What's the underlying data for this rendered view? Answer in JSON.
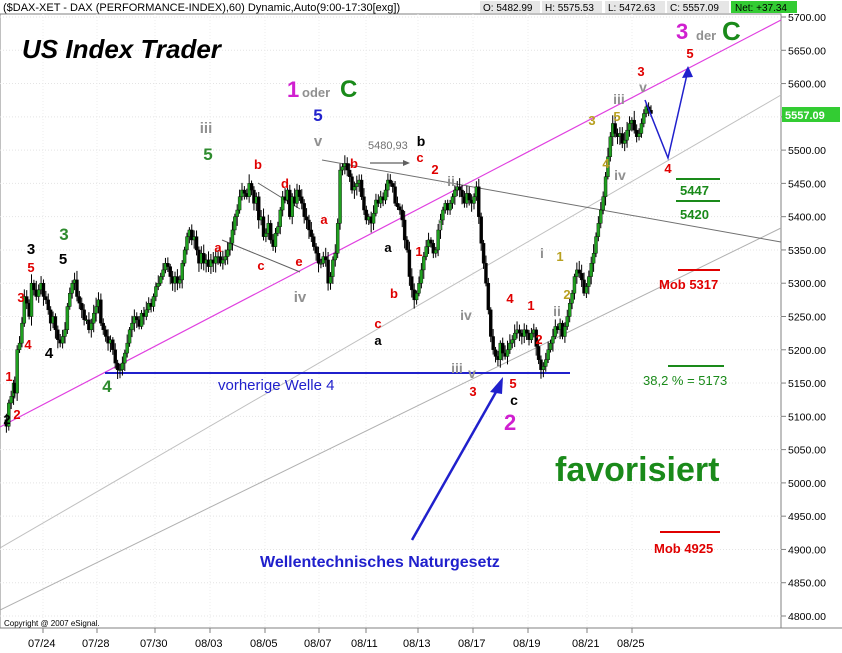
{
  "header": {
    "symbol_line": "($DAX-XET - DAX (PERFORMANCE-INDEX),60) Dynamic,Auto(9:00-17:30[exg])",
    "open": "O: 5482.99",
    "high": "H: 5575.53",
    "low": "L: 5472.63",
    "close": "C: 5557.09",
    "net": "Net: +37.34",
    "colors": {
      "net_bg": "#33cc33",
      "box_bg": "#e6e6e6"
    }
  },
  "title": "US Index Trader",
  "copyright": "Copyright @ 2007 eSignal.",
  "annotations": {
    "vorherige": "vorherige Welle 4",
    "naturgesetz": "Wellentechnisches Naturgesetz",
    "favorisiert": "favorisiert",
    "level_5480": "5480,93",
    "mob_5317": "Mob 5317",
    "mob_4925": "Mob 4925",
    "fib": "38,2 % = 5173",
    "lvl_5447": "5447",
    "lvl_5420": "5420",
    "one_oder": "1",
    "oder_word": "oder",
    "c_big": "C",
    "three": "3",
    "der_word": "der",
    "c_big2": "C",
    "two_big": "2",
    "last_price": "5557.09"
  },
  "wave_labels": [
    {
      "t": "2",
      "x": 7,
      "y": 424,
      "c": "#000000",
      "s": 13
    },
    {
      "t": "1",
      "x": 9,
      "y": 381,
      "c": "#e00000",
      "s": 13
    },
    {
      "t": "2",
      "x": 17,
      "y": 419,
      "c": "#e00000",
      "s": 13
    },
    {
      "t": "3",
      "x": 21,
      "y": 302,
      "c": "#e00000",
      "s": 13
    },
    {
      "t": "4",
      "x": 28,
      "y": 349,
      "c": "#e00000",
      "s": 13
    },
    {
      "t": "5",
      "x": 31,
      "y": 272,
      "c": "#e00000",
      "s": 13
    },
    {
      "t": "3",
      "x": 31,
      "y": 254,
      "c": "#000000",
      "s": 15
    },
    {
      "t": "4",
      "x": 49,
      "y": 358,
      "c": "#000000",
      "s": 15
    },
    {
      "t": "3",
      "x": 64,
      "y": 240,
      "c": "#2e8b2e",
      "s": 17
    },
    {
      "t": "4",
      "x": 107,
      "y": 392,
      "c": "#2e8b2e",
      "s": 17
    },
    {
      "t": "5",
      "x": 63,
      "y": 264,
      "c": "#000000",
      "s": 15
    },
    {
      "t": "iii",
      "x": 206,
      "y": 133,
      "c": "#909090",
      "s": 15
    },
    {
      "t": "5",
      "x": 208,
      "y": 160,
      "c": "#2e8b2e",
      "s": 17
    },
    {
      "t": "a",
      "x": 218,
      "y": 252,
      "c": "#e00000",
      "s": 13
    },
    {
      "t": "b",
      "x": 258,
      "y": 169,
      "c": "#e00000",
      "s": 13
    },
    {
      "t": "c",
      "x": 261,
      "y": 270,
      "c": "#e00000",
      "s": 13
    },
    {
      "t": "d",
      "x": 285,
      "y": 188,
      "c": "#e00000",
      "s": 13
    },
    {
      "t": "e",
      "x": 299,
      "y": 266,
      "c": "#e00000",
      "s": 13
    },
    {
      "t": "iv",
      "x": 300,
      "y": 302,
      "c": "#909090",
      "s": 15
    },
    {
      "t": "5",
      "x": 318,
      "y": 121,
      "c": "#2222cc",
      "s": 17
    },
    {
      "t": "v",
      "x": 318,
      "y": 146,
      "c": "#909090",
      "s": 15
    },
    {
      "t": "a",
      "x": 324,
      "y": 224,
      "c": "#e00000",
      "s": 13
    },
    {
      "t": "b",
      "x": 354,
      "y": 168,
      "c": "#e00000",
      "s": 13
    },
    {
      "t": "b",
      "x": 421,
      "y": 146,
      "c": "#000000",
      "s": 14
    },
    {
      "t": "c",
      "x": 420,
      "y": 162,
      "c": "#e00000",
      "s": 13
    },
    {
      "t": "2",
      "x": 435,
      "y": 174,
      "c": "#e00000",
      "s": 13
    },
    {
      "t": "ii",
      "x": 451,
      "y": 186,
      "c": "#909090",
      "s": 14
    },
    {
      "t": "i",
      "x": 440,
      "y": 230,
      "c": "#909090",
      "s": 14
    },
    {
      "t": "a",
      "x": 388,
      "y": 252,
      "c": "#000000",
      "s": 13
    },
    {
      "t": "1",
      "x": 419,
      "y": 256,
      "c": "#e00000",
      "s": 13
    },
    {
      "t": "b",
      "x": 394,
      "y": 298,
      "c": "#e00000",
      "s": 13
    },
    {
      "t": "c",
      "x": 378,
      "y": 328,
      "c": "#e00000",
      "s": 13
    },
    {
      "t": "a",
      "x": 378,
      "y": 345,
      "c": "#000000",
      "s": 13
    },
    {
      "t": "iv",
      "x": 466,
      "y": 320,
      "c": "#909090",
      "s": 14
    },
    {
      "t": "iii",
      "x": 457,
      "y": 373,
      "c": "#909090",
      "s": 14
    },
    {
      "t": "v",
      "x": 472,
      "y": 378,
      "c": "#909090",
      "s": 14
    },
    {
      "t": "3",
      "x": 473,
      "y": 396,
      "c": "#e00000",
      "s": 13
    },
    {
      "t": "5",
      "x": 513,
      "y": 388,
      "c": "#e00000",
      "s": 13
    },
    {
      "t": "c",
      "x": 514,
      "y": 405,
      "c": "#000000",
      "s": 14
    },
    {
      "t": "4",
      "x": 510,
      "y": 303,
      "c": "#e00000",
      "s": 13
    },
    {
      "t": "1",
      "x": 531,
      "y": 310,
      "c": "#e00000",
      "s": 13
    },
    {
      "t": "2",
      "x": 539,
      "y": 344,
      "c": "#e00000",
      "s": 13
    },
    {
      "t": "i",
      "x": 542,
      "y": 258,
      "c": "#909090",
      "s": 14
    },
    {
      "t": "1",
      "x": 560,
      "y": 261,
      "c": "#b8a020",
      "s": 13
    },
    {
      "t": "2",
      "x": 567,
      "y": 299,
      "c": "#b8a020",
      "s": 13
    },
    {
      "t": "ii",
      "x": 557,
      "y": 316,
      "c": "#909090",
      "s": 14
    },
    {
      "t": "3",
      "x": 592,
      "y": 125,
      "c": "#b8a020",
      "s": 13
    },
    {
      "t": "4",
      "x": 606,
      "y": 168,
      "c": "#b8a020",
      "s": 13
    },
    {
      "t": "5",
      "x": 617,
      "y": 121,
      "c": "#b8a020",
      "s": 13
    },
    {
      "t": "iii",
      "x": 619,
      "y": 104,
      "c": "#909090",
      "s": 14
    },
    {
      "t": "iv",
      "x": 620,
      "y": 180,
      "c": "#909090",
      "s": 14
    },
    {
      "t": "3",
      "x": 641,
      "y": 76,
      "c": "#e00000",
      "s": 13
    },
    {
      "t": "v",
      "x": 643,
      "y": 92,
      "c": "#909090",
      "s": 14
    },
    {
      "t": "4",
      "x": 668,
      "y": 173,
      "c": "#e00000",
      "s": 13
    },
    {
      "t": "5",
      "x": 690,
      "y": 58,
      "c": "#e00000",
      "s": 13
    }
  ],
  "x_axis": {
    "labels": [
      "07/24",
      "07/28",
      "07/30",
      "08/03",
      "08/05",
      "08/07",
      "08/11",
      "08/13",
      "08/17",
      "08/19",
      "08/21",
      "08/25"
    ]
  },
  "chart_data": {
    "type": "candlestick",
    "title": "($DAX-XET - DAX (PERFORMANCE-INDEX),60) Dynamic,Auto(9:00-17:30[exg])",
    "ylim": [
      4770,
      5730
    ],
    "y_ticks": [
      4800,
      4850,
      4900,
      4950,
      5000,
      5050,
      5100,
      5150,
      5200,
      5250,
      5300,
      5350,
      5400,
      5450,
      5500,
      5550,
      5600,
      5650,
      5700
    ],
    "y_tick_labels": [
      "4800.00",
      "4850.00",
      "4900.00",
      "4950.00",
      "5000.00",
      "5050.00",
      "5100.00",
      "5150.00",
      "5200.00",
      "5250.00",
      "5300.00",
      "5350.00",
      "5400.00",
      "5450.00",
      "5500.00",
      "5550.00",
      "5600.00",
      "5650.00",
      "5700.00"
    ],
    "x_tick_labels": [
      "07/24",
      "07/28",
      "07/30",
      "08/03",
      "08/05",
      "08/07",
      "08/11",
      "08/13",
      "08/17",
      "08/19",
      "08/21",
      "08/25"
    ],
    "last_price": 5557.09,
    "price_path": [
      [
        0,
        5095
      ],
      [
        2,
        5085
      ],
      [
        4,
        5120
      ],
      [
        6,
        5130
      ],
      [
        8,
        5150
      ],
      [
        9,
        5135
      ],
      [
        11,
        5200
      ],
      [
        13,
        5210
      ],
      [
        15,
        5240
      ],
      [
        17,
        5280
      ],
      [
        19,
        5270
      ],
      [
        21,
        5250
      ],
      [
        23,
        5300
      ],
      [
        25,
        5290
      ],
      [
        27,
        5280
      ],
      [
        29,
        5290
      ],
      [
        31,
        5300
      ],
      [
        33,
        5280
      ],
      [
        35,
        5275
      ],
      [
        37,
        5260
      ],
      [
        39,
        5240
      ],
      [
        41,
        5250
      ],
      [
        43,
        5230
      ],
      [
        45,
        5215
      ],
      [
        47,
        5210
      ],
      [
        49,
        5220
      ],
      [
        51,
        5230
      ],
      [
        53,
        5265
      ],
      [
        55,
        5285
      ],
      [
        57,
        5300
      ],
      [
        59,
        5305
      ],
      [
        61,
        5280
      ],
      [
        63,
        5270
      ],
      [
        65,
        5260
      ],
      [
        67,
        5245
      ],
      [
        69,
        5245
      ],
      [
        71,
        5230
      ],
      [
        73,
        5240
      ],
      [
        75,
        5255
      ],
      [
        77,
        5265
      ],
      [
        79,
        5275
      ],
      [
        81,
        5240
      ],
      [
        83,
        5230
      ],
      [
        85,
        5220
      ],
      [
        87,
        5210
      ],
      [
        89,
        5215
      ],
      [
        91,
        5200
      ],
      [
        93,
        5180
      ],
      [
        95,
        5170
      ],
      [
        97,
        5170
      ],
      [
        99,
        5180
      ],
      [
        101,
        5195
      ],
      [
        103,
        5210
      ],
      [
        105,
        5230
      ],
      [
        107,
        5240
      ],
      [
        109,
        5250
      ],
      [
        111,
        5245
      ],
      [
        113,
        5235
      ],
      [
        115,
        5255
      ],
      [
        117,
        5250
      ],
      [
        119,
        5260
      ],
      [
        121,
        5270
      ],
      [
        123,
        5265
      ],
      [
        125,
        5280
      ],
      [
        127,
        5295
      ],
      [
        129,
        5300
      ],
      [
        131,
        5310
      ],
      [
        133,
        5320
      ],
      [
        135,
        5330
      ],
      [
        137,
        5325
      ],
      [
        139,
        5310
      ],
      [
        141,
        5300
      ],
      [
        143,
        5310
      ],
      [
        145,
        5300
      ],
      [
        147,
        5305
      ],
      [
        149,
        5330
      ],
      [
        151,
        5350
      ],
      [
        153,
        5370
      ],
      [
        155,
        5380
      ],
      [
        157,
        5365
      ],
      [
        159,
        5370
      ],
      [
        161,
        5350
      ],
      [
        163,
        5330
      ],
      [
        165,
        5345
      ],
      [
        167,
        5330
      ],
      [
        169,
        5335
      ],
      [
        171,
        5325
      ],
      [
        173,
        5335
      ],
      [
        175,
        5330
      ],
      [
        177,
        5340
      ],
      [
        179,
        5340
      ],
      [
        181,
        5330
      ],
      [
        183,
        5335
      ],
      [
        185,
        5340
      ],
      [
        187,
        5350
      ],
      [
        189,
        5360
      ],
      [
        191,
        5380
      ],
      [
        193,
        5400
      ],
      [
        195,
        5410
      ],
      [
        197,
        5430
      ],
      [
        199,
        5440
      ],
      [
        201,
        5435
      ],
      [
        203,
        5430
      ],
      [
        205,
        5450
      ],
      [
        207,
        5440
      ],
      [
        209,
        5420
      ],
      [
        211,
        5430
      ],
      [
        213,
        5395
      ],
      [
        215,
        5400
      ],
      [
        217,
        5370
      ],
      [
        219,
        5375
      ],
      [
        221,
        5390
      ],
      [
        223,
        5365
      ],
      [
        225,
        5355
      ],
      [
        227,
        5375
      ],
      [
        229,
        5385
      ],
      [
        231,
        5410
      ],
      [
        233,
        5430
      ],
      [
        235,
        5425
      ],
      [
        237,
        5440
      ],
      [
        239,
        5400
      ],
      [
        241,
        5430
      ],
      [
        243,
        5420
      ],
      [
        245,
        5440
      ],
      [
        247,
        5430
      ],
      [
        249,
        5420
      ],
      [
        251,
        5400
      ],
      [
        253,
        5395
      ],
      [
        255,
        5380
      ],
      [
        257,
        5370
      ],
      [
        259,
        5355
      ],
      [
        261,
        5345
      ],
      [
        263,
        5330
      ],
      [
        265,
        5330
      ],
      [
        267,
        5340
      ],
      [
        269,
        5335
      ],
      [
        271,
        5300
      ],
      [
        273,
        5310
      ],
      [
        275,
        5335
      ],
      [
        277,
        5345
      ],
      [
        279,
        5390
      ],
      [
        281,
        5470
      ],
      [
        283,
        5475
      ],
      [
        285,
        5480
      ],
      [
        287,
        5470
      ],
      [
        289,
        5460
      ],
      [
        291,
        5440
      ],
      [
        293,
        5445
      ],
      [
        295,
        5450
      ],
      [
        297,
        5455
      ],
      [
        299,
        5430
      ],
      [
        301,
        5410
      ],
      [
        303,
        5395
      ],
      [
        305,
        5400
      ],
      [
        307,
        5390
      ],
      [
        309,
        5405
      ],
      [
        311,
        5425
      ],
      [
        313,
        5420
      ],
      [
        315,
        5430
      ],
      [
        317,
        5425
      ],
      [
        319,
        5440
      ],
      [
        321,
        5455
      ],
      [
        323,
        5450
      ],
      [
        325,
        5445
      ],
      [
        327,
        5420
      ],
      [
        329,
        5415
      ],
      [
        331,
        5410
      ],
      [
        333,
        5395
      ],
      [
        335,
        5365
      ],
      [
        337,
        5350
      ],
      [
        339,
        5310
      ],
      [
        341,
        5290
      ],
      [
        343,
        5275
      ],
      [
        345,
        5285
      ],
      [
        347,
        5300
      ],
      [
        349,
        5320
      ],
      [
        351,
        5340
      ],
      [
        353,
        5355
      ],
      [
        355,
        5365
      ],
      [
        357,
        5360
      ],
      [
        359,
        5345
      ],
      [
        361,
        5350
      ],
      [
        363,
        5380
      ],
      [
        365,
        5395
      ],
      [
        367,
        5410
      ],
      [
        369,
        5420
      ],
      [
        371,
        5410
      ],
      [
        373,
        5420
      ],
      [
        375,
        5430
      ],
      [
        377,
        5440
      ],
      [
        379,
        5445
      ],
      [
        381,
        5440
      ],
      [
        383,
        5430
      ],
      [
        385,
        5420
      ],
      [
        387,
        5435
      ],
      [
        389,
        5425
      ],
      [
        391,
        5420
      ],
      [
        393,
        5430
      ],
      [
        395,
        5445
      ],
      [
        397,
        5400
      ],
      [
        399,
        5360
      ],
      [
        401,
        5330
      ],
      [
        403,
        5300
      ],
      [
        405,
        5260
      ],
      [
        407,
        5220
      ],
      [
        409,
        5200
      ],
      [
        411,
        5190
      ],
      [
        413,
        5185
      ],
      [
        415,
        5210
      ],
      [
        417,
        5195
      ],
      [
        419,
        5190
      ],
      [
        421,
        5200
      ],
      [
        423,
        5210
      ],
      [
        425,
        5215
      ],
      [
        427,
        5225
      ],
      [
        429,
        5230
      ],
      [
        431,
        5225
      ],
      [
        433,
        5220
      ],
      [
        435,
        5230
      ],
      [
        437,
        5225
      ],
      [
        439,
        5215
      ],
      [
        441,
        5225
      ],
      [
        443,
        5230
      ],
      [
        445,
        5205
      ],
      [
        447,
        5185
      ],
      [
        449,
        5170
      ],
      [
        451,
        5175
      ],
      [
        453,
        5185
      ],
      [
        455,
        5200
      ],
      [
        457,
        5210
      ],
      [
        459,
        5220
      ],
      [
        461,
        5235
      ],
      [
        463,
        5230
      ],
      [
        465,
        5240
      ],
      [
        467,
        5220
      ],
      [
        469,
        5235
      ],
      [
        471,
        5250
      ],
      [
        473,
        5270
      ],
      [
        475,
        5285
      ],
      [
        477,
        5310
      ],
      [
        479,
        5320
      ],
      [
        481,
        5315
      ],
      [
        483,
        5305
      ],
      [
        485,
        5285
      ],
      [
        487,
        5295
      ],
      [
        489,
        5310
      ],
      [
        491,
        5330
      ],
      [
        493,
        5345
      ],
      [
        495,
        5370
      ],
      [
        497,
        5390
      ],
      [
        499,
        5410
      ],
      [
        501,
        5430
      ],
      [
        503,
        5460
      ],
      [
        505,
        5490
      ],
      [
        507,
        5520
      ],
      [
        509,
        5540
      ],
      [
        511,
        5525
      ],
      [
        513,
        5520
      ],
      [
        515,
        5525
      ],
      [
        517,
        5510
      ],
      [
        519,
        5515
      ],
      [
        521,
        5530
      ],
      [
        523,
        5540
      ],
      [
        525,
        5545
      ],
      [
        527,
        5530
      ],
      [
        529,
        5520
      ],
      [
        531,
        5525
      ],
      [
        533,
        5540
      ],
      [
        535,
        5555
      ],
      [
        537,
        5565
      ],
      [
        539,
        5560
      ],
      [
        541,
        5555
      ]
    ]
  }
}
